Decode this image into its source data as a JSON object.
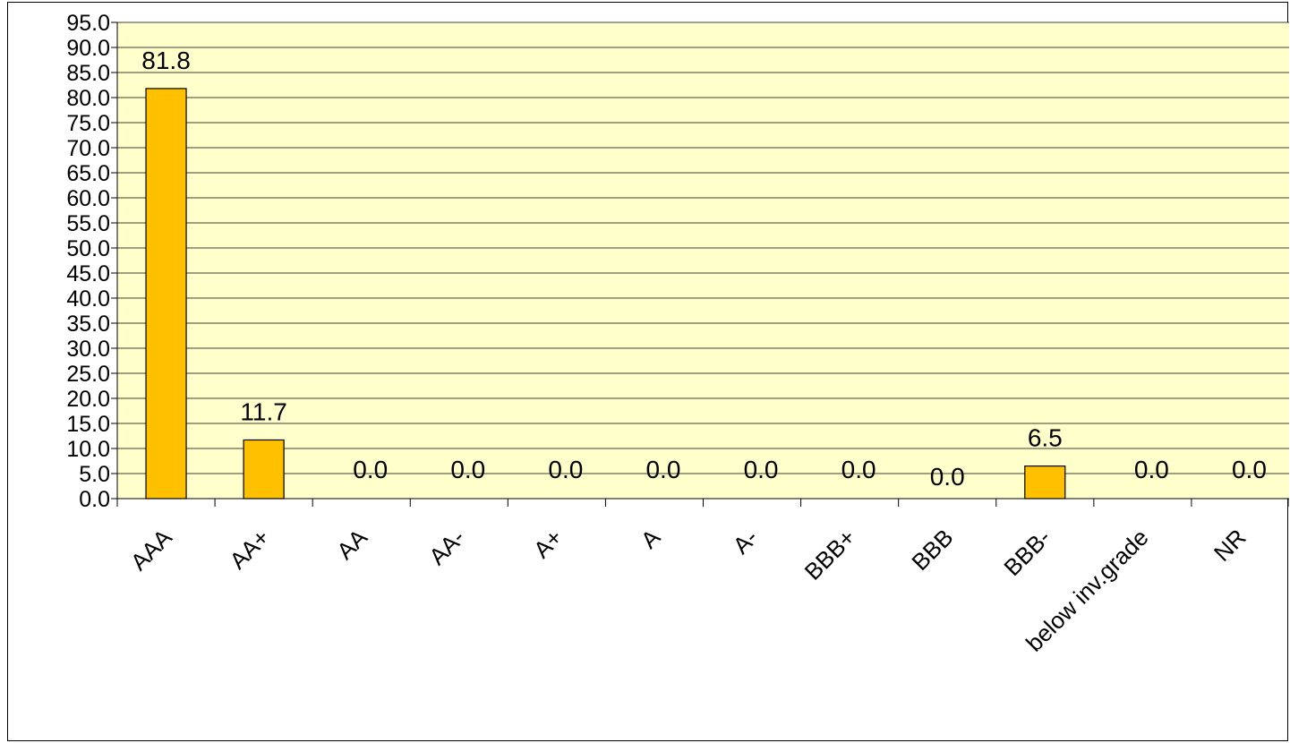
{
  "chart_data": {
    "type": "bar",
    "categories": [
      "AAA",
      "AA+",
      "AA",
      "AA-",
      "A+",
      "A",
      "A-",
      "BBB+",
      "BBB",
      "BBB-",
      "below inv.grade",
      "NR"
    ],
    "values": [
      81.8,
      11.7,
      0.0,
      0.0,
      0.0,
      0.0,
      0.0,
      0.0,
      0.0,
      6.5,
      0.0,
      0.0
    ],
    "data_labels": [
      "81.8",
      "11.7",
      "0.0",
      "0.0",
      "0.0",
      "0.0",
      "0.0",
      "0.0",
      "0.0",
      "6.5",
      "0.0",
      "0.0"
    ],
    "y_ticks": [
      "0.0",
      "5.0",
      "10.0",
      "15.0",
      "20.0",
      "25.0",
      "30.0",
      "35.0",
      "40.0",
      "45.0",
      "50.0",
      "55.0",
      "60.0",
      "65.0",
      "70.0",
      "75.0",
      "80.0",
      "85.0",
      "90.0",
      "95.0"
    ],
    "ylim": [
      0,
      95
    ],
    "ystep": 5,
    "title": "",
    "xlabel": "",
    "ylabel": "",
    "grid": true,
    "legend": "none",
    "colors": {
      "plot_background": "#FFFFCC",
      "bar_fill": "#FFC000",
      "bar_stroke": "#000000",
      "gridline": "#000000"
    }
  }
}
